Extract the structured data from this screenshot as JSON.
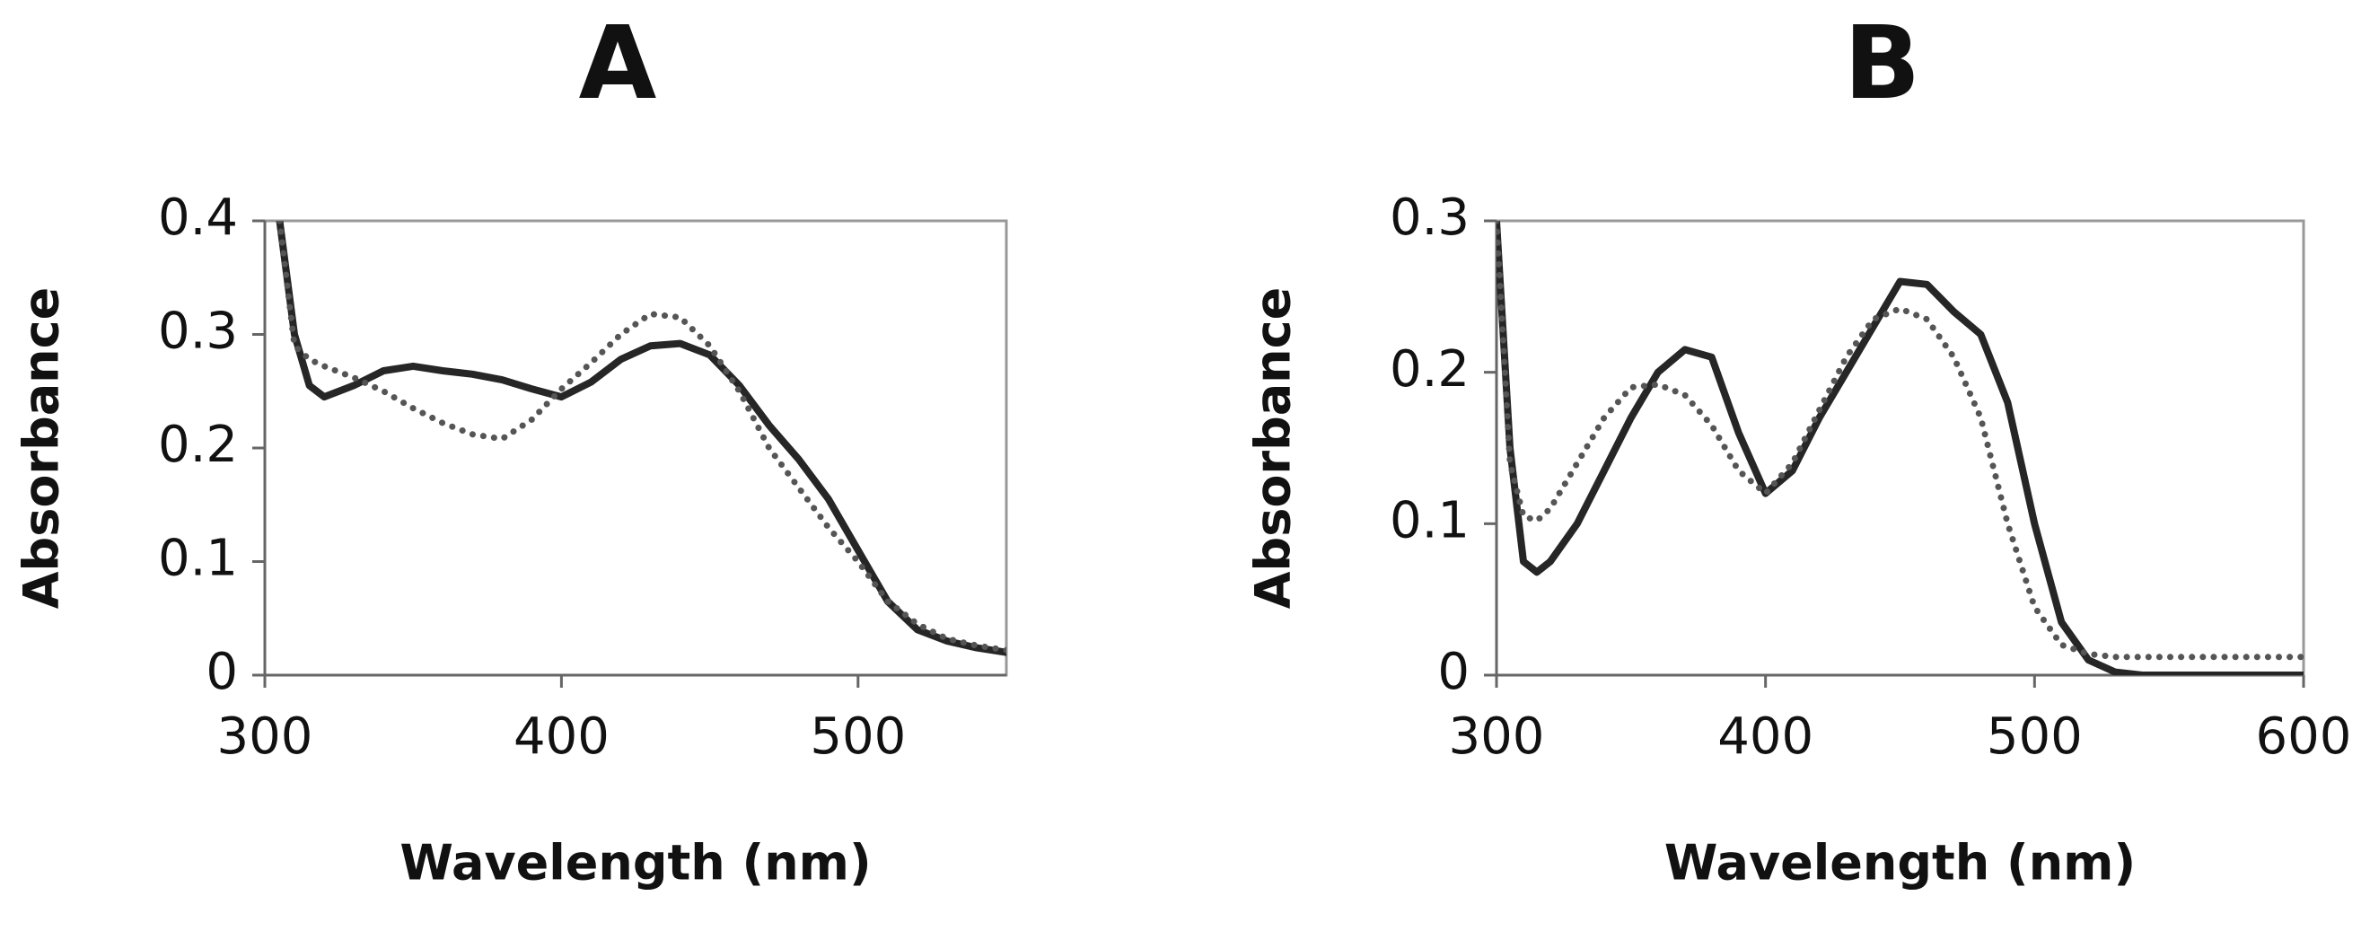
{
  "chart_data": [
    {
      "type": "line",
      "title": "A",
      "xlabel": "Wavelength (nm)",
      "ylabel": "Absorbance",
      "x": [
        305,
        310,
        315,
        320,
        330,
        340,
        350,
        360,
        370,
        380,
        390,
        400,
        410,
        420,
        430,
        440,
        450,
        460,
        470,
        480,
        490,
        500,
        510,
        520,
        530,
        540,
        550
      ],
      "series": [
        {
          "color": "#262626",
          "style": "solid",
          "values": [
            0.4,
            0.3,
            0.255,
            0.245,
            0.255,
            0.268,
            0.272,
            0.268,
            0.265,
            0.26,
            0.252,
            0.245,
            0.258,
            0.278,
            0.29,
            0.292,
            0.282,
            0.255,
            0.22,
            0.19,
            0.155,
            0.11,
            0.065,
            0.04,
            0.03,
            0.024,
            0.02
          ]
        },
        {
          "color": "#555555",
          "style": "dotted",
          "values": [
            0.4,
            0.29,
            0.278,
            0.272,
            0.262,
            0.25,
            0.235,
            0.222,
            0.212,
            0.208,
            0.225,
            0.252,
            0.275,
            0.3,
            0.318,
            0.315,
            0.29,
            0.25,
            0.2,
            0.165,
            0.13,
            0.1,
            0.065,
            0.045,
            0.032,
            0.026,
            0.022
          ]
        }
      ],
      "xlim": [
        300,
        550
      ],
      "xticks": [
        300,
        400,
        500
      ],
      "ylim": [
        0,
        0.4
      ],
      "yticks": [
        0,
        0.1,
        0.2,
        0.3,
        0.4
      ]
    },
    {
      "type": "line",
      "title": "B",
      "xlabel": "Wavelength (nm)",
      "ylabel": "Absorbance",
      "x": [
        300,
        305,
        310,
        315,
        320,
        330,
        340,
        350,
        360,
        370,
        380,
        390,
        400,
        410,
        420,
        430,
        440,
        450,
        460,
        470,
        480,
        490,
        500,
        510,
        520,
        530,
        540,
        550,
        560,
        570,
        580,
        590,
        600
      ],
      "series": [
        {
          "color": "#262626",
          "style": "solid",
          "values": [
            0.3,
            0.15,
            0.075,
            0.068,
            0.075,
            0.1,
            0.135,
            0.17,
            0.2,
            0.215,
            0.21,
            0.16,
            0.12,
            0.135,
            0.17,
            0.2,
            0.23,
            0.26,
            0.258,
            0.24,
            0.225,
            0.18,
            0.1,
            0.035,
            0.01,
            0.002,
            0,
            0,
            0,
            0,
            0,
            0,
            0
          ]
        },
        {
          "color": "#555555",
          "style": "dotted",
          "values": [
            0.3,
            0.14,
            0.105,
            0.102,
            0.11,
            0.14,
            0.17,
            0.19,
            0.192,
            0.185,
            0.165,
            0.135,
            0.12,
            0.14,
            0.175,
            0.21,
            0.235,
            0.242,
            0.235,
            0.21,
            0.17,
            0.1,
            0.045,
            0.02,
            0.014,
            0.012,
            0.012,
            0.012,
            0.012,
            0.012,
            0.012,
            0.012,
            0.012
          ]
        }
      ],
      "xlim": [
        300,
        600
      ],
      "xticks": [
        300,
        400,
        500,
        600
      ],
      "ylim": [
        0,
        0.3
      ],
      "yticks": [
        0,
        0.1,
        0.2,
        0.3
      ]
    }
  ]
}
